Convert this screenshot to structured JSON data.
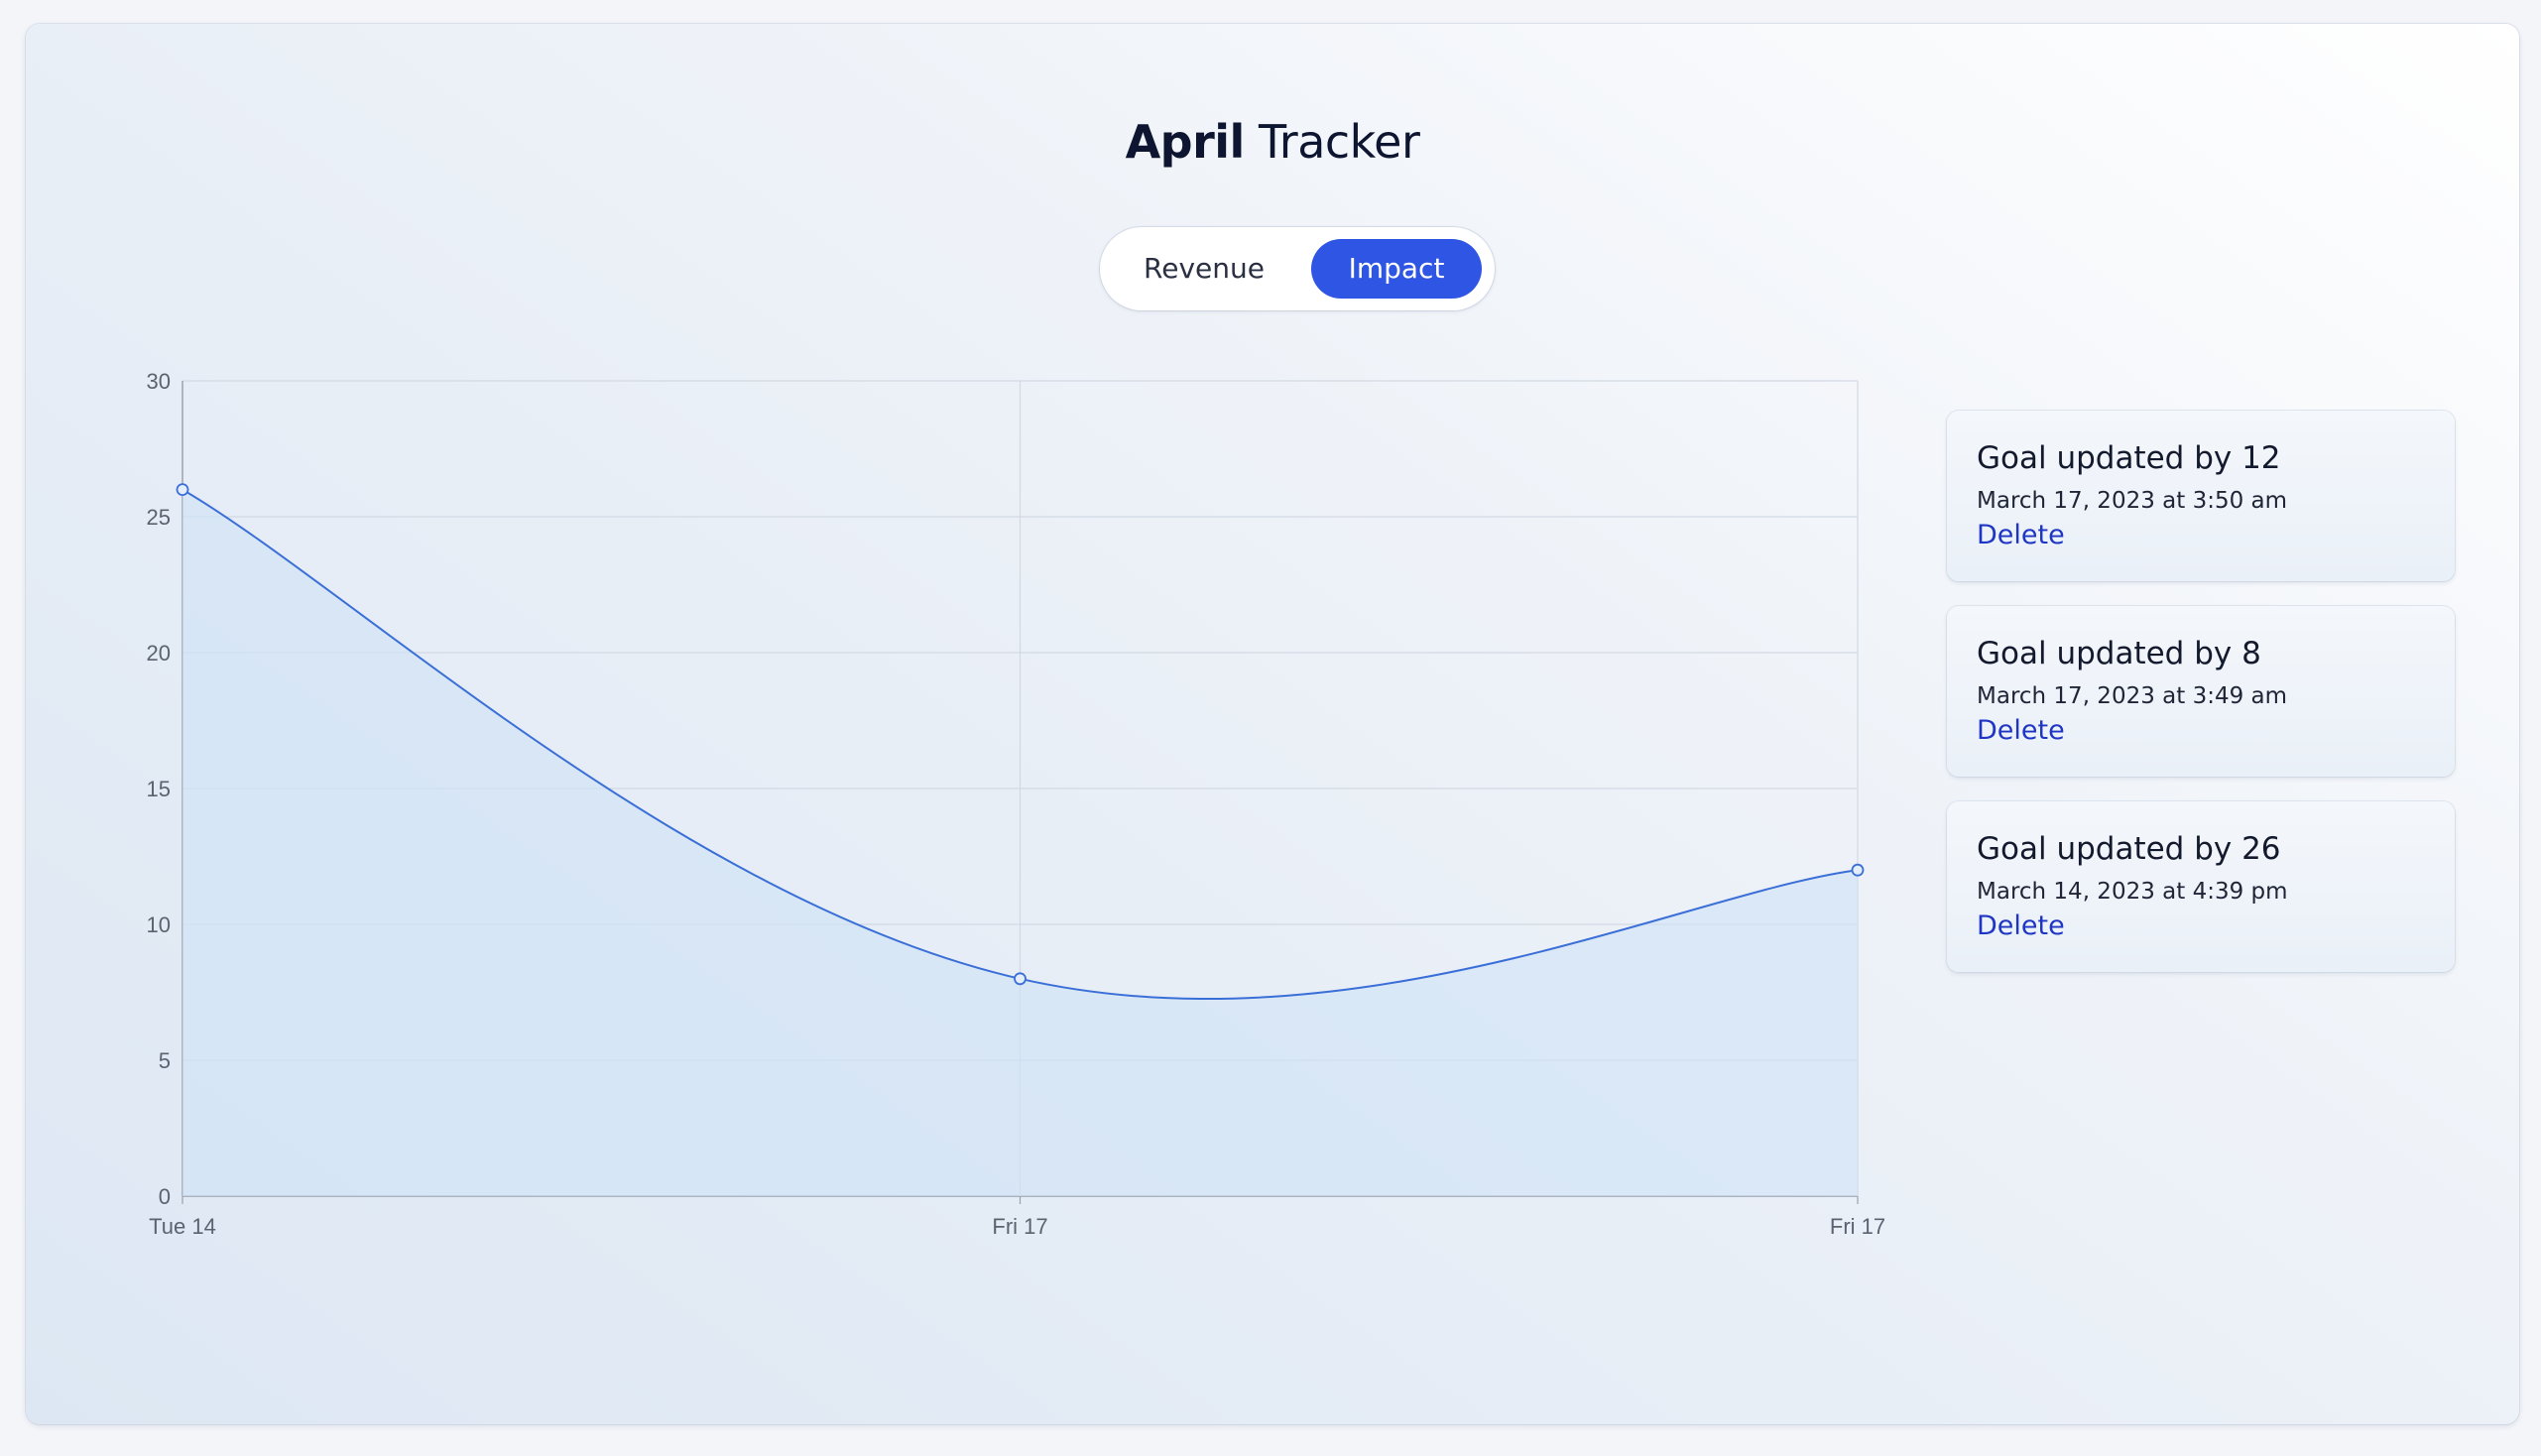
{
  "header": {
    "title_bold": "April",
    "title_rest": "Tracker"
  },
  "toggle": {
    "options": [
      "Revenue",
      "Impact"
    ],
    "selected": "Impact",
    "accent_color": "#2f55e4"
  },
  "goals": [
    {
      "title": "Goal updated by 12",
      "date": "March 17, 2023 at 3:50 am",
      "action": "Delete"
    },
    {
      "title": "Goal updated by 8",
      "date": "March 17, 2023 at 3:49 am",
      "action": "Delete"
    },
    {
      "title": "Goal updated by 26",
      "date": "March 14, 2023 at 4:39 pm",
      "action": "Delete"
    }
  ],
  "chart_data": {
    "type": "area",
    "categories": [
      "Tue 14",
      "Fri 17",
      "Fri 17"
    ],
    "values": [
      26,
      8,
      12
    ],
    "ylim": [
      0,
      30
    ],
    "yticks": [
      0,
      5,
      10,
      15,
      20,
      25,
      30
    ],
    "grid": true,
    "line_color": "#3b6fd8",
    "fill_color": "#cfe2f6"
  }
}
